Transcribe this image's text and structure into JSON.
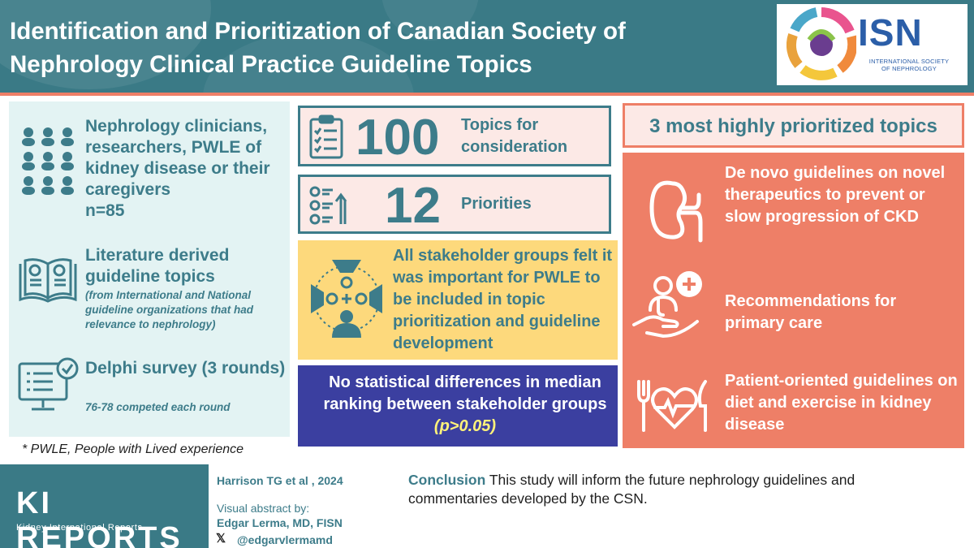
{
  "header": {
    "title": "Identification and Prioritization of Canadian Society of Nephrology Clinical Practice Guideline Topics",
    "logo": {
      "text": "ISN",
      "subtitle": "INTERNATIONAL SOCIETY OF NEPHROLOGY"
    }
  },
  "left_panel": {
    "participants": {
      "text": "Nephrology clinicians, researchers, PWLE of kidney disease or their caregivers",
      "count": "n=85",
      "icon": "people-group-icon"
    },
    "literature": {
      "title": "Literature derived guideline topics",
      "note": "(from International and National guideline organizations that had relevance to nephrology)",
      "icon": "open-book-icon"
    },
    "delphi": {
      "title": "Delphi survey (3 rounds)",
      "note": "76-78 competed each round",
      "icon": "computer-checklist-icon"
    }
  },
  "footnote": "* PWLE, People with Lived experience",
  "middle": {
    "topics": {
      "number": "100",
      "label": "Topics for consideration",
      "icon": "clipboard-checklist-icon"
    },
    "priorities": {
      "number": "12",
      "label": "Priorities",
      "icon": "priority-list-icon"
    },
    "stakeholder": {
      "text": "All stakeholder groups felt it was important for PWLE to be included in topic prioritization and guideline development",
      "icon": "stakeholders-circle-icon"
    },
    "statistics": {
      "text": "No statistical differences in median ranking between stakeholder groups",
      "pvalue": "(p>0.05)"
    }
  },
  "right_panel": {
    "header": "3 most highly prioritized topics",
    "topics": [
      {
        "text": "De novo guidelines on novel therapeutics to prevent or slow progression of CKD",
        "icon": "kidney-icon"
      },
      {
        "text": "Recommendations for primary care",
        "icon": "doctor-care-icon"
      },
      {
        "text": "Patient-oriented guidelines on diet and exercise in kidney disease",
        "icon": "heart-diet-icon"
      }
    ]
  },
  "footer": {
    "journal_title": "KI REPORTS",
    "journal_subtitle": "Kidney International Reports",
    "citation": "Harrison TG et al , 2024",
    "visual_abstract_label": "Visual abstract by:",
    "author": "Edgar Lerma, MD, FISN",
    "handle": "@edgarvlermamd",
    "conclusion_label": "Conclusion",
    "conclusion_text": "This study will inform the future nephrology guidelines and commentaries developed by the CSN."
  },
  "colors": {
    "teal": "#3a7a86",
    "coral": "#ee7f67",
    "light_teal": "#e3f3f3",
    "light_pink": "#fce9e6",
    "yellow": "#fdd97c",
    "navy": "#3b3fa0"
  }
}
